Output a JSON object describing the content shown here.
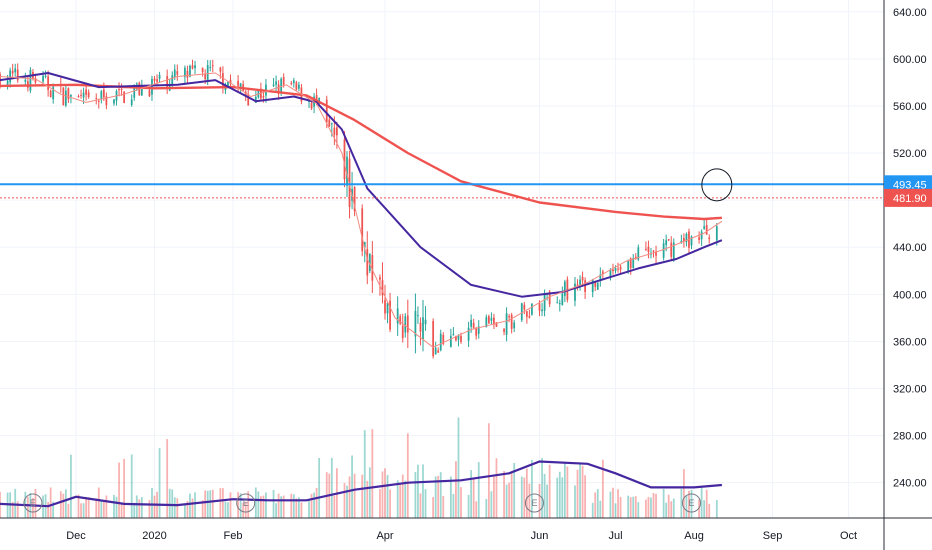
{
  "chart_data": {
    "type": "candlestick",
    "title": "",
    "y_axis": {
      "min": 210,
      "max": 650,
      "position": "right",
      "ticks": [
        240,
        280,
        320,
        360,
        400,
        440,
        480,
        520,
        560,
        600,
        640
      ],
      "tick_labels": [
        "240.00",
        "280.00",
        "320.00",
        "360.00",
        "400.00",
        "440.00",
        "480.00",
        "520.00",
        "560.00",
        "600.00",
        "640.00"
      ]
    },
    "x_axis": {
      "start": "2019-11-01",
      "end": "2020-10-15",
      "ticks": [
        "2019-12-01",
        "2020-01-01",
        "2020-02-01",
        "2020-04-01",
        "2020-06-01",
        "2020-07-01",
        "2020-08-01",
        "2020-09-01",
        "2020-10-01"
      ],
      "tick_labels": [
        "Dec",
        "2020",
        "Feb",
        "Apr",
        "Jun",
        "Jul",
        "Aug",
        "Sep",
        "Oct"
      ]
    },
    "grid": true,
    "price_lines": [
      {
        "value": 493.45,
        "label": "493.45",
        "color": "#2196f3",
        "style": "solid"
      },
      {
        "value": 481.9,
        "label": "481.90",
        "color": "#ef5350",
        "style": "dotted"
      }
    ],
    "moving_averages": [
      {
        "color": "#ef5350",
        "width": "thick",
        "points": [
          [
            "2019-11-01",
            577
          ],
          [
            "2019-12-01",
            578
          ],
          [
            "2020-01-01",
            575
          ],
          [
            "2020-02-01",
            576
          ],
          [
            "2020-03-01",
            569
          ],
          [
            "2020-03-20",
            548
          ],
          [
            "2020-04-10",
            520
          ],
          [
            "2020-05-01",
            496
          ],
          [
            "2020-06-01",
            478
          ],
          [
            "2020-07-01",
            470
          ],
          [
            "2020-07-20",
            466
          ],
          [
            "2020-08-05",
            464
          ],
          [
            "2020-08-12",
            465
          ]
        ]
      },
      {
        "color": "#4527a0",
        "width": "medium",
        "points": [
          [
            "2019-11-01",
            582
          ],
          [
            "2019-11-20",
            588
          ],
          [
            "2019-12-10",
            576
          ],
          [
            "2020-01-10",
            578
          ],
          [
            "2020-01-25",
            582
          ],
          [
            "2020-02-10",
            564
          ],
          [
            "2020-02-25",
            568
          ],
          [
            "2020-03-05",
            563
          ],
          [
            "2020-03-15",
            540
          ],
          [
            "2020-03-25",
            490
          ],
          [
            "2020-04-15",
            440
          ],
          [
            "2020-05-05",
            408
          ],
          [
            "2020-05-25",
            398
          ],
          [
            "2020-06-10",
            402
          ],
          [
            "2020-06-25",
            412
          ],
          [
            "2020-07-10",
            422
          ],
          [
            "2020-07-25",
            430
          ],
          [
            "2020-08-05",
            440
          ],
          [
            "2020-08-12",
            446
          ]
        ]
      },
      {
        "color": "#f28b82",
        "width": "thin",
        "points": [
          [
            "2019-11-01",
            585
          ],
          [
            "2019-11-15",
            583
          ],
          [
            "2019-11-25",
            570
          ],
          [
            "2019-12-05",
            563
          ],
          [
            "2019-12-20",
            570
          ],
          [
            "2020-01-10",
            585
          ],
          [
            "2020-01-25",
            588
          ],
          [
            "2020-02-08",
            568
          ],
          [
            "2020-02-22",
            578
          ],
          [
            "2020-03-05",
            562
          ],
          [
            "2020-03-15",
            520
          ],
          [
            "2020-03-25",
            430
          ],
          [
            "2020-04-05",
            380
          ],
          [
            "2020-04-20",
            355
          ],
          [
            "2020-05-05",
            370
          ],
          [
            "2020-05-20",
            378
          ],
          [
            "2020-06-05",
            398
          ],
          [
            "2020-06-20",
            410
          ],
          [
            "2020-07-05",
            428
          ],
          [
            "2020-07-20",
            438
          ],
          [
            "2020-08-05",
            452
          ],
          [
            "2020-08-12",
            462
          ]
        ]
      }
    ],
    "volume_ma": {
      "color": "#4527a0",
      "points": [
        [
          "2019-11-01",
          222
        ],
        [
          "2019-11-20",
          220
        ],
        [
          "2019-12-01",
          228
        ],
        [
          "2019-12-20",
          222
        ],
        [
          "2020-01-10",
          221
        ],
        [
          "2020-02-01",
          226
        ],
        [
          "2020-02-15",
          225
        ],
        [
          "2020-03-01",
          225
        ],
        [
          "2020-03-20",
          234
        ],
        [
          "2020-04-10",
          240
        ],
        [
          "2020-05-01",
          242
        ],
        [
          "2020-05-20",
          248
        ],
        [
          "2020-06-01",
          258
        ],
        [
          "2020-06-20",
          256
        ],
        [
          "2020-07-01",
          248
        ],
        [
          "2020-07-15",
          236
        ],
        [
          "2020-08-01",
          236
        ],
        [
          "2020-08-12",
          238
        ]
      ]
    },
    "annotation": {
      "type": "circle",
      "date": "2020-08-10",
      "value": 493,
      "label": ""
    },
    "earnings_markers": [
      {
        "date": "2019-11-14",
        "label": "E"
      },
      {
        "date": "2020-02-06",
        "label": "E"
      },
      {
        "date": "2020-05-30",
        "label": "E"
      },
      {
        "date": "2020-07-31",
        "label": "E"
      }
    ],
    "colors": {
      "up": "#26a69a",
      "down": "#ef5350",
      "grid": "#f0f3fa",
      "axis_text": "#131722"
    }
  }
}
